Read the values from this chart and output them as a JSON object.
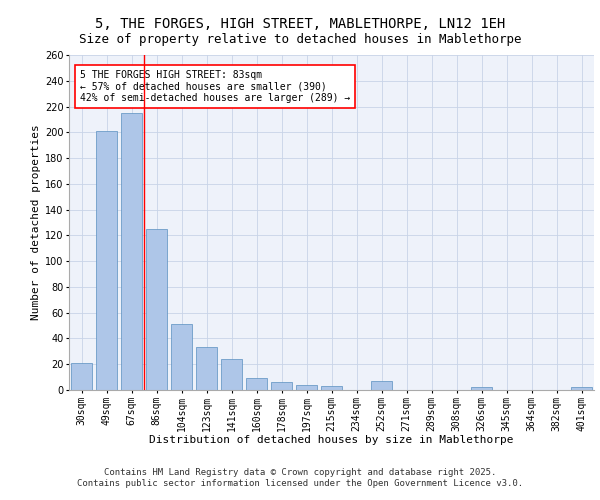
{
  "title": "5, THE FORGES, HIGH STREET, MABLETHORPE, LN12 1EH",
  "subtitle": "Size of property relative to detached houses in Mablethorpe",
  "xlabel": "Distribution of detached houses by size in Mablethorpe",
  "ylabel": "Number of detached properties",
  "categories": [
    "30sqm",
    "49sqm",
    "67sqm",
    "86sqm",
    "104sqm",
    "123sqm",
    "141sqm",
    "160sqm",
    "178sqm",
    "197sqm",
    "215sqm",
    "234sqm",
    "252sqm",
    "271sqm",
    "289sqm",
    "308sqm",
    "326sqm",
    "345sqm",
    "364sqm",
    "382sqm",
    "401sqm"
  ],
  "values": [
    21,
    201,
    215,
    125,
    51,
    33,
    24,
    9,
    6,
    4,
    3,
    0,
    7,
    0,
    0,
    0,
    2,
    0,
    0,
    0,
    2
  ],
  "bar_color": "#aec6e8",
  "bar_edge_color": "#5a8fc0",
  "annotation_box_text": "5 THE FORGES HIGH STREET: 83sqm\n← 57% of detached houses are smaller (390)\n42% of semi-detached houses are larger (289) →",
  "vline_x": 2.5,
  "vline_color": "red",
  "ylim": [
    0,
    260
  ],
  "yticks": [
    0,
    20,
    40,
    60,
    80,
    100,
    120,
    140,
    160,
    180,
    200,
    220,
    240,
    260
  ],
  "footer_line1": "Contains HM Land Registry data © Crown copyright and database right 2025.",
  "footer_line2": "Contains public sector information licensed under the Open Government Licence v3.0.",
  "background_color": "#eef2fa",
  "grid_color": "#c8d4e8",
  "title_fontsize": 10,
  "axis_label_fontsize": 8,
  "tick_fontsize": 7,
  "annotation_fontsize": 7,
  "footer_fontsize": 6.5
}
